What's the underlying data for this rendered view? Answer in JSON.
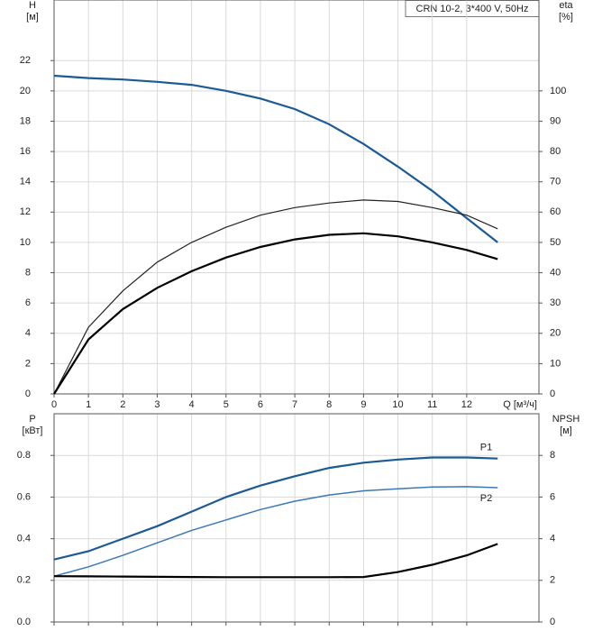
{
  "chart_data": [
    {
      "type": "line",
      "title": "CRN 10-2, 3*400 V, 50Hz",
      "y_label": "H",
      "y_unit": "[м]",
      "y2_label": "eta",
      "y2_unit": "[%]",
      "x_label": "Q [м³/ч]",
      "x": [
        0,
        1,
        2,
        3,
        4,
        5,
        6,
        7,
        8,
        9,
        10,
        11,
        12,
        12.9
      ],
      "xlim": [
        0,
        14.1
      ],
      "xticks": [
        0,
        1,
        2,
        3,
        4,
        5,
        6,
        7,
        8,
        9,
        10,
        11,
        12
      ],
      "ylim": [
        0,
        26
      ],
      "yticks": [
        0,
        2,
        4,
        6,
        8,
        10,
        12,
        14,
        16,
        18,
        20,
        22
      ],
      "y2lim": [
        0,
        130
      ],
      "y2ticks": [
        0,
        10,
        20,
        30,
        40,
        50,
        60,
        70,
        80,
        90,
        100
      ],
      "grid": true,
      "series": [
        {
          "color": "#1c5a96",
          "width": 2.2,
          "values": [
            21,
            20.85,
            20.75,
            20.6,
            20.4,
            20,
            19.5,
            18.8,
            17.8,
            16.5,
            15,
            13.4,
            11.6,
            10
          ]
        },
        {
          "color": "#222222",
          "width": 1.2,
          "axis": "y2",
          "values": [
            0,
            22,
            34,
            43.5,
            50,
            55,
            59,
            61.5,
            63,
            64,
            63.5,
            61.5,
            59,
            54.5
          ]
        },
        {
          "color": "#000000",
          "width": 2.2,
          "axis": "y2",
          "values": [
            0,
            18,
            28,
            35,
            40.5,
            45,
            48.5,
            51,
            52.5,
            53,
            52,
            50,
            47.5,
            44.5
          ]
        }
      ]
    },
    {
      "type": "line",
      "y_label": "P",
      "y_unit": "[кВт]",
      "y2_label": "NPSH",
      "y2_unit": "[м]",
      "x": [
        0,
        1,
        2,
        3,
        4,
        5,
        6,
        7,
        8,
        9,
        10,
        11,
        12,
        12.9
      ],
      "xlim": [
        0,
        14.1
      ],
      "xticks": [
        0,
        1,
        2,
        3,
        4,
        5,
        6,
        7,
        8,
        9,
        10,
        11,
        12
      ],
      "xtick_labels": false,
      "ylim": [
        0,
        1.0
      ],
      "yticks": [
        {
          "value": 0,
          "label": "0.0"
        },
        0.2,
        0.4,
        0.6,
        0.8
      ],
      "y2lim": [
        0,
        10
      ],
      "y2ticks": [
        0,
        2,
        4,
        6,
        8
      ],
      "grid": true,
      "series": [
        {
          "name": "P1",
          "color": "#1c5a96",
          "width": 2.2,
          "values": [
            0.3,
            0.34,
            0.4,
            0.46,
            0.53,
            0.6,
            0.655,
            0.7,
            0.74,
            0.765,
            0.78,
            0.79,
            0.79,
            0.785
          ]
        },
        {
          "name": "P2",
          "color": "#3b78b5",
          "width": 1.5,
          "values": [
            0.22,
            0.265,
            0.32,
            0.38,
            0.44,
            0.49,
            0.54,
            0.58,
            0.61,
            0.63,
            0.64,
            0.648,
            0.65,
            0.645
          ]
        },
        {
          "color": "#000000",
          "width": 2.2,
          "axis": "y2",
          "values": [
            2.2,
            2.19,
            2.18,
            2.17,
            2.16,
            2.15,
            2.15,
            2.15,
            2.15,
            2.16,
            2.4,
            2.75,
            3.2,
            3.75
          ]
        }
      ]
    }
  ]
}
